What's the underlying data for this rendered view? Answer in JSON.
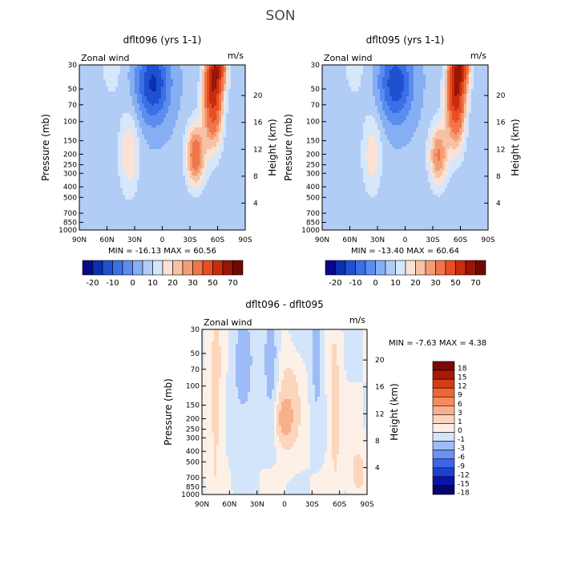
{
  "figure_title": "SON",
  "colors": {
    "full_levels": [
      "#08088a",
      "#0a2fb0",
      "#1f50d0",
      "#3a6fe5",
      "#5b8cf0",
      "#86aef3",
      "#b1cdf6",
      "#d6e6fb",
      "#fbe2d4",
      "#f7c2a4",
      "#f39d76",
      "#ef754a",
      "#e94e22",
      "#c72d0e",
      "#991506",
      "#6e0a02"
    ],
    "diff_levels": [
      "#050570",
      "#0a14a8",
      "#1f3fd0",
      "#3c64e8",
      "#6a90f2",
      "#9dbbf7",
      "#d3e5fb",
      "#fdf0e7",
      "#fcd5bd",
      "#f8b08c",
      "#f38b5d",
      "#ee6633",
      "#d63b14",
      "#a91a06",
      "#7a0a02"
    ]
  },
  "chart_data": [
    {
      "id": "panel-a",
      "type": "heatmap",
      "title": "dflt096 (yrs 1-1)",
      "left_label": "Zonal wind",
      "units": "m/s",
      "ylabel": "Pressure (mb)",
      "ylabel_right": "Height (km)",
      "x_ticks": [
        "90N",
        "60N",
        "30N",
        "0",
        "30S",
        "60S",
        "90S"
      ],
      "p_ticks": [
        30,
        50,
        70,
        100,
        150,
        200,
        250,
        300,
        400,
        500,
        700,
        850,
        1000
      ],
      "h_ticks": [
        4,
        8,
        12,
        16,
        20
      ],
      "stats": {
        "min_label": "MIN =",
        "min": "-16.13",
        "max_label": "MAX =",
        "max": "60.56"
      },
      "colorbar": {
        "orientation": "horizontal",
        "boundaries": [
          "-20",
          "-10",
          "0",
          "10",
          "20",
          "30",
          "50",
          "70"
        ]
      },
      "features": [
        {
          "lat": 36,
          "logp": 2.3,
          "v": 14,
          "slat": 11,
          "slp": 0.38
        },
        {
          "lat": -36,
          "logp": 2.31,
          "v": 30,
          "slat": 10,
          "slp": 0.28
        },
        {
          "lat": -55,
          "logp": 1.72,
          "v": 50,
          "slat": 10,
          "slp": 0.45
        },
        {
          "lat": -62,
          "logp": 1.5,
          "v": 25,
          "slat": 9,
          "slp": 0.2
        },
        {
          "lat": 10,
          "logp": 1.65,
          "v": -22,
          "slat": 18,
          "slp": 0.35
        },
        {
          "lat": 55,
          "logp": 1.5,
          "v": 6,
          "slat": 14,
          "slp": 0.35
        }
      ]
    },
    {
      "id": "panel-b",
      "type": "heatmap",
      "title": "dflt095 (yrs 1-1)",
      "left_label": "Zonal wind",
      "units": "m/s",
      "ylabel": "Pressure (mb)",
      "ylabel_right": "Height (km)",
      "x_ticks": [
        "90N",
        "60N",
        "30N",
        "0",
        "30S",
        "60S",
        "90S"
      ],
      "p_ticks": [
        30,
        50,
        70,
        100,
        150,
        200,
        250,
        300,
        400,
        500,
        700,
        850,
        1000
      ],
      "h_ticks": [
        4,
        8,
        12,
        16,
        20
      ],
      "stats": {
        "min_label": "MIN =",
        "min": "-13.40",
        "max_label": "MAX =",
        "max": "60.64"
      },
      "colorbar": {
        "orientation": "horizontal",
        "boundaries": [
          "-20",
          "-10",
          "0",
          "10",
          "20",
          "30",
          "50",
          "70"
        ]
      },
      "features": [
        {
          "lat": 36,
          "logp": 2.3,
          "v": 12,
          "slat": 11,
          "slp": 0.38
        },
        {
          "lat": -36,
          "logp": 2.31,
          "v": 25,
          "slat": 10,
          "slp": 0.28
        },
        {
          "lat": -55,
          "logp": 1.72,
          "v": 52,
          "slat": 10,
          "slp": 0.45
        },
        {
          "lat": -62,
          "logp": 1.5,
          "v": 25,
          "slat": 9,
          "slp": 0.2
        },
        {
          "lat": 10,
          "logp": 1.65,
          "v": -20,
          "slat": 18,
          "slp": 0.35
        },
        {
          "lat": 55,
          "logp": 1.5,
          "v": 6,
          "slat": 14,
          "slp": 0.35
        }
      ]
    },
    {
      "id": "panel-diff",
      "type": "heatmap",
      "title": "dflt096 - dflt095",
      "left_label": "Zonal wind",
      "units": "m/s",
      "ylabel": "Pressure (mb)",
      "ylabel_right": "Height (km)",
      "x_ticks": [
        "90N",
        "60N",
        "30N",
        "0",
        "30S",
        "60S",
        "90S"
      ],
      "p_ticks": [
        30,
        50,
        70,
        100,
        150,
        200,
        250,
        300,
        400,
        500,
        700,
        850,
        1000
      ],
      "h_ticks": [
        4,
        8,
        12,
        16,
        20
      ],
      "stats": {
        "min_label": "MIN =",
        "min": "-7.63",
        "max_label": "MAX =",
        "max": "4.38"
      },
      "colorbar": {
        "orientation": "vertical",
        "boundaries": [
          "18",
          "15",
          "12",
          "9",
          "6",
          "3",
          "1",
          "0",
          "-1",
          "-3",
          "-6",
          "-9",
          "-12",
          "-15",
          "-18"
        ]
      },
      "features": [
        {
          "lat": 0,
          "logp": 2.31,
          "v": 4,
          "slat": 8,
          "slp": 0.18
        },
        {
          "lat": -5,
          "logp": 2.15,
          "v": 2,
          "slat": 12,
          "slp": 0.4
        },
        {
          "lat": 75,
          "logp": 2.2,
          "v": 1.5,
          "slat": 8,
          "slp": 0.9
        },
        {
          "lat": -55,
          "logp": 2.2,
          "v": 1.5,
          "slat": 7,
          "slp": 0.9
        },
        {
          "lat": -80,
          "logp": 2.8,
          "v": 1.5,
          "slat": 10,
          "slp": 0.25
        },
        {
          "lat": 15,
          "logp": 1.7,
          "v": -2,
          "slat": 8,
          "slp": 0.5
        },
        {
          "lat": -35,
          "logp": 1.6,
          "v": -2,
          "slat": 6,
          "slp": 0.6
        },
        {
          "lat": 45,
          "logp": 1.9,
          "v": -1.5,
          "slat": 12,
          "slp": 0.6
        }
      ]
    }
  ]
}
